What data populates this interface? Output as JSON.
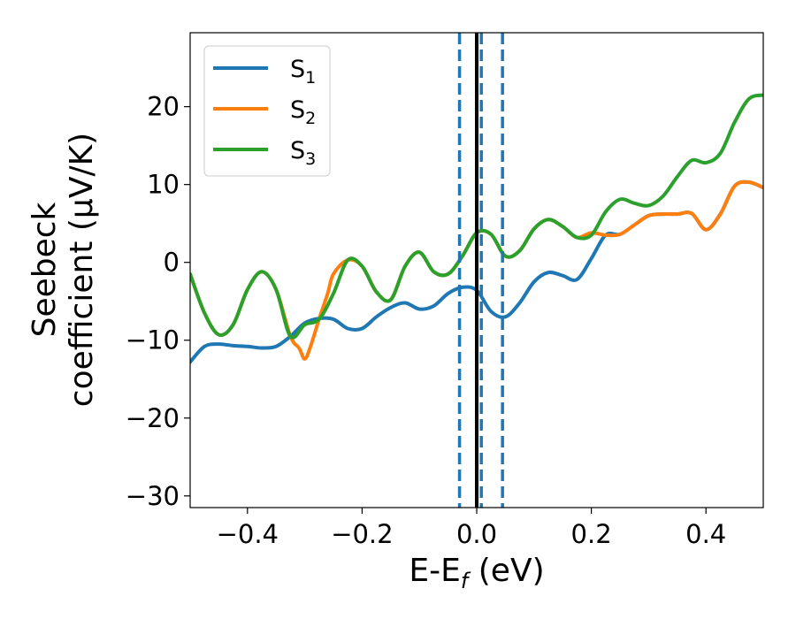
{
  "chart_data": {
    "type": "line",
    "xlabel_parts": [
      "E-E",
      "f",
      " (eV)"
    ],
    "ylabel_lines": [
      "Seebeck",
      "coefficient  (μV/K)"
    ],
    "xlim": [
      -0.5,
      0.5
    ],
    "ylim": [
      -31.5,
      29.5
    ],
    "xticks": [
      -0.4,
      -0.2,
      0.0,
      0.2,
      0.4
    ],
    "xtick_labels": [
      "−0.4",
      "−0.2",
      "0.0",
      "0.2",
      "0.4"
    ],
    "yticks": [
      -30,
      -20,
      -10,
      0,
      10,
      20
    ],
    "ytick_labels": [
      "−30",
      "−20",
      "−10",
      "0",
      "10",
      "20"
    ],
    "grid": false,
    "legend_position": "upper-left",
    "vertical_lines": [
      {
        "x": 0.0,
        "style": "solid",
        "color": "#000000"
      },
      {
        "x": -0.03,
        "style": "dashed",
        "color": "#1f77b4"
      },
      {
        "x": 0.008,
        "style": "dashed",
        "color": "#1f77b4"
      },
      {
        "x": 0.045,
        "style": "dashed",
        "color": "#1f77b4"
      }
    ],
    "series": [
      {
        "name": "S",
        "subscript": "1",
        "color": "#1f77b4",
        "x": [
          -0.5,
          -0.475,
          -0.45,
          -0.425,
          -0.4,
          -0.375,
          -0.35,
          -0.325,
          -0.3,
          -0.275,
          -0.25,
          -0.225,
          -0.2,
          -0.175,
          -0.15,
          -0.125,
          -0.1,
          -0.075,
          -0.05,
          -0.025,
          0.0,
          0.025,
          0.05,
          0.075,
          0.1,
          0.125,
          0.15,
          0.175,
          0.2,
          0.225,
          0.25,
          0.275,
          0.3,
          0.325,
          0.35,
          0.375,
          0.4,
          0.425,
          0.45,
          0.475,
          0.5
        ],
        "y": [
          -12.8,
          -10.8,
          -10.5,
          -10.7,
          -10.8,
          -11.0,
          -10.8,
          -9.5,
          -7.8,
          -7.2,
          -7.3,
          -8.5,
          -8.5,
          -7.0,
          -5.8,
          -5.2,
          -6.0,
          -5.6,
          -4.0,
          -3.2,
          -3.6,
          -6.3,
          -7.0,
          -5.2,
          -2.5,
          -1.3,
          -1.7,
          -2.2,
          0.5,
          3.5,
          3.6,
          4.8,
          6.0,
          6.2,
          6.2,
          6.3,
          4.2,
          6.2,
          9.8,
          10.3,
          9.6
        ]
      },
      {
        "name": "S",
        "subscript": "2",
        "color": "#ff7f0e",
        "x": [
          -0.5,
          -0.475,
          -0.45,
          -0.425,
          -0.4,
          -0.375,
          -0.35,
          -0.325,
          -0.31,
          -0.3,
          -0.29,
          -0.275,
          -0.26,
          -0.25,
          -0.225,
          -0.2,
          -0.175,
          -0.15,
          -0.125,
          -0.1,
          -0.075,
          -0.05,
          -0.025,
          0.0,
          0.025,
          0.05,
          0.075,
          0.1,
          0.125,
          0.15,
          0.175,
          0.2,
          0.225,
          0.25,
          0.275,
          0.3,
          0.325,
          0.35,
          0.375,
          0.4,
          0.425,
          0.45,
          0.475,
          0.5
        ],
        "y": [
          -1.5,
          -6.5,
          -9.3,
          -8.0,
          -3.5,
          -1.2,
          -3.5,
          -9.5,
          -11.0,
          -12.4,
          -10.8,
          -7.3,
          -4.0,
          -1.5,
          0.3,
          -0.5,
          -3.8,
          -4.8,
          -0.5,
          1.3,
          -1.2,
          -1.5,
          0.8,
          3.8,
          3.6,
          0.8,
          1.5,
          4.3,
          5.5,
          4.6,
          3.2,
          3.8,
          3.5,
          3.6,
          4.8,
          6.0,
          6.2,
          6.2,
          6.3,
          4.2,
          6.2,
          9.8,
          10.3,
          9.6
        ]
      },
      {
        "name": "S",
        "subscript": "3",
        "color": "#2ca02c",
        "x": [
          -0.5,
          -0.475,
          -0.45,
          -0.425,
          -0.4,
          -0.375,
          -0.35,
          -0.325,
          -0.3,
          -0.275,
          -0.25,
          -0.225,
          -0.2,
          -0.175,
          -0.15,
          -0.125,
          -0.1,
          -0.075,
          -0.05,
          -0.025,
          0.0,
          0.025,
          0.05,
          0.075,
          0.1,
          0.125,
          0.15,
          0.175,
          0.2,
          0.225,
          0.25,
          0.275,
          0.3,
          0.325,
          0.35,
          0.375,
          0.4,
          0.425,
          0.45,
          0.475,
          0.5
        ],
        "y": [
          -1.5,
          -6.5,
          -9.3,
          -8.0,
          -3.5,
          -1.2,
          -3.5,
          -9.5,
          -8.0,
          -7.3,
          -4.0,
          0.3,
          -0.5,
          -3.8,
          -4.8,
          -0.5,
          1.3,
          -1.2,
          -1.5,
          0.8,
          3.8,
          3.6,
          0.8,
          1.5,
          4.3,
          5.5,
          4.6,
          3.2,
          3.5,
          6.5,
          8.1,
          7.6,
          7.3,
          8.5,
          11.0,
          13.1,
          12.8,
          14.0,
          18.0,
          21.0,
          21.5
        ]
      }
    ]
  }
}
